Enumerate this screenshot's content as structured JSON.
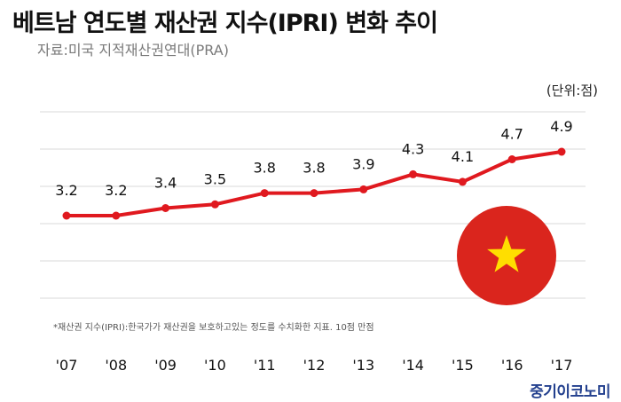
{
  "title": "베트남 연도별 재산권 지수(IPRI) 변화 추이",
  "source": "자료:미국 지적재산권연대(PRA)",
  "unit": "(단위:점)",
  "footnote": "*재산권 지수(IPRI):한국가가 재산권을 보호하고있는 정도를 수치화한 지표. 10점 만점",
  "brand": "중기이코노미",
  "colors": {
    "line": "#e0191f",
    "grid": "#d9d9d9",
    "flag_red": "#da251d",
    "flag_star": "#ffde00"
  },
  "chart_data": {
    "type": "line",
    "title": "베트남 연도별 재산권 지수(IPRI) 변화 추이",
    "xlabel": "",
    "ylabel": "",
    "categories": [
      "'07",
      "'08",
      "'09",
      "'10",
      "'11",
      "'12",
      "'13",
      "'14",
      "'15",
      "'16",
      "'17"
    ],
    "series": [
      {
        "values": [
          3.2,
          3.2,
          3.4,
          3.5,
          3.8,
          3.8,
          3.9,
          4.3,
          4.1,
          4.7,
          4.9
        ]
      }
    ],
    "data_labels": [
      "3.2",
      "3.2",
      "3.4",
      "3.5",
      "3.8",
      "3.8",
      "3.9",
      "4.3",
      "4.1",
      "4.7",
      "4.9"
    ],
    "grid": true,
    "legend": "none"
  }
}
